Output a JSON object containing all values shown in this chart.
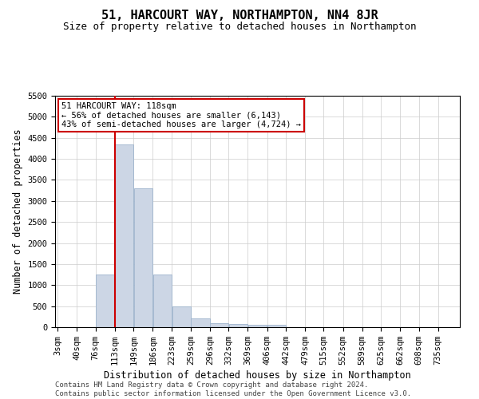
{
  "title": "51, HARCOURT WAY, NORTHAMPTON, NN4 8JR",
  "subtitle": "Size of property relative to detached houses in Northampton",
  "xlabel": "Distribution of detached houses by size in Northampton",
  "ylabel": "Number of detached properties",
  "footer_line1": "Contains HM Land Registry data © Crown copyright and database right 2024.",
  "footer_line2": "Contains public sector information licensed under the Open Government Licence v3.0.",
  "annotation_line1": "51 HARCOURT WAY: 118sqm",
  "annotation_line2": "← 56% of detached houses are smaller (6,143)",
  "annotation_line3": "43% of semi-detached houses are larger (4,724) →",
  "bar_color": "#ccd6e5",
  "bar_edge_color": "#9db3cc",
  "vline_color": "#cc0000",
  "vline_x": 113,
  "categories": [
    "3sqm",
    "40sqm",
    "76sqm",
    "113sqm",
    "149sqm",
    "186sqm",
    "223sqm",
    "259sqm",
    "296sqm",
    "332sqm",
    "369sqm",
    "406sqm",
    "442sqm",
    "479sqm",
    "515sqm",
    "552sqm",
    "589sqm",
    "625sqm",
    "662sqm",
    "698sqm",
    "735sqm"
  ],
  "bin_edges": [
    3,
    40,
    76,
    113,
    149,
    186,
    223,
    259,
    296,
    332,
    369,
    406,
    442,
    479,
    515,
    552,
    589,
    625,
    662,
    698,
    735,
    772
  ],
  "values": [
    0,
    0,
    1250,
    4350,
    3300,
    1250,
    500,
    200,
    100,
    75,
    50,
    50,
    0,
    0,
    0,
    0,
    0,
    0,
    0,
    0,
    0
  ],
  "ylim": [
    0,
    5500
  ],
  "yticks": [
    0,
    500,
    1000,
    1500,
    2000,
    2500,
    3000,
    3500,
    4000,
    4500,
    5000,
    5500
  ],
  "background_color": "#ffffff",
  "grid_color": "#cccccc",
  "title_fontsize": 11,
  "subtitle_fontsize": 9,
  "axis_fontsize": 8.5,
  "tick_fontsize": 7.5,
  "footer_fontsize": 6.5,
  "annot_fontsize": 7.5
}
